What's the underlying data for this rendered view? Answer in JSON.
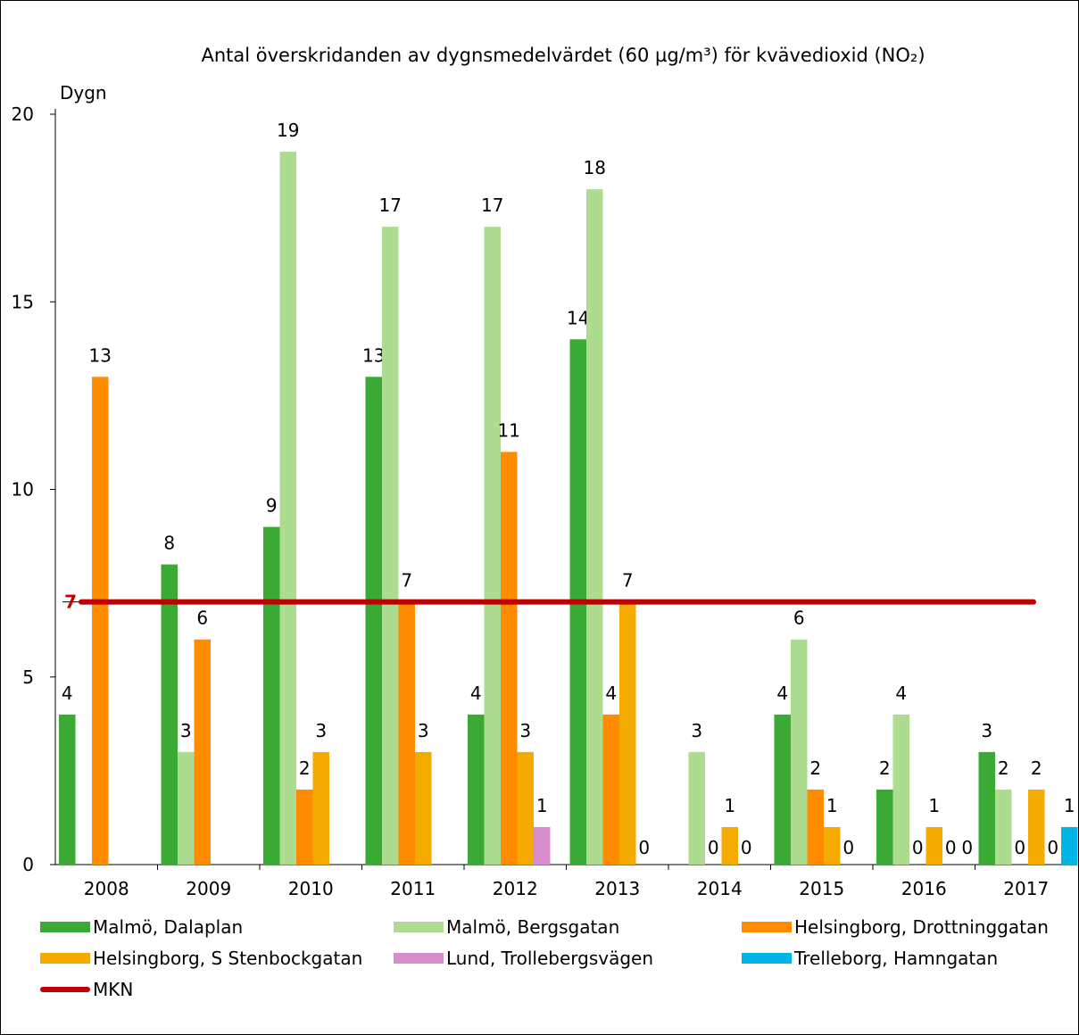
{
  "chart_data": {
    "type": "bar",
    "title": "Antal överskridanden av dygnsmedelvärdet (60 µg/m³) för kvävedioxid (NO₂)",
    "ylabel": "Dygn",
    "ylim": [
      0,
      20
    ],
    "yticks": [
      0,
      5,
      10,
      15,
      20
    ],
    "categories": [
      "2008",
      "2009",
      "2010",
      "2011",
      "2012",
      "2013",
      "2014",
      "2015",
      "2016",
      "2017"
    ],
    "series": [
      {
        "name": "Malmö, Dalaplan",
        "color": "#3aaa35",
        "values": [
          4,
          8,
          9,
          13,
          4,
          14,
          null,
          4,
          2,
          3
        ]
      },
      {
        "name": "Malmö, Bergsgatan",
        "color": "#addc91",
        "values": [
          null,
          3,
          19,
          17,
          17,
          18,
          3,
          6,
          4,
          2
        ]
      },
      {
        "name": "Helsingborg, Drottninggatan",
        "color": "#ff8c00",
        "values": [
          13,
          6,
          2,
          7,
          11,
          4,
          0,
          2,
          0,
          0
        ]
      },
      {
        "name": "Helsingborg, S Stenbockgatan",
        "color": "#f5aa00",
        "values": [
          null,
          null,
          3,
          3,
          3,
          7,
          1,
          1,
          1,
          2
        ]
      },
      {
        "name": "Lund, Trollebergsvägen",
        "color": "#d98ccc",
        "values": [
          null,
          null,
          null,
          null,
          1,
          0,
          0,
          0,
          0,
          0
        ]
      },
      {
        "name": "Trelleborg, Hamngatan",
        "color": "#00b4e6",
        "values": [
          null,
          null,
          null,
          null,
          null,
          null,
          null,
          null,
          0,
          1
        ]
      }
    ],
    "reference_line": {
      "name": "MKN",
      "value": 7,
      "label": "7",
      "color": "#c00000"
    },
    "legend_position": "bottom",
    "grid": false
  }
}
